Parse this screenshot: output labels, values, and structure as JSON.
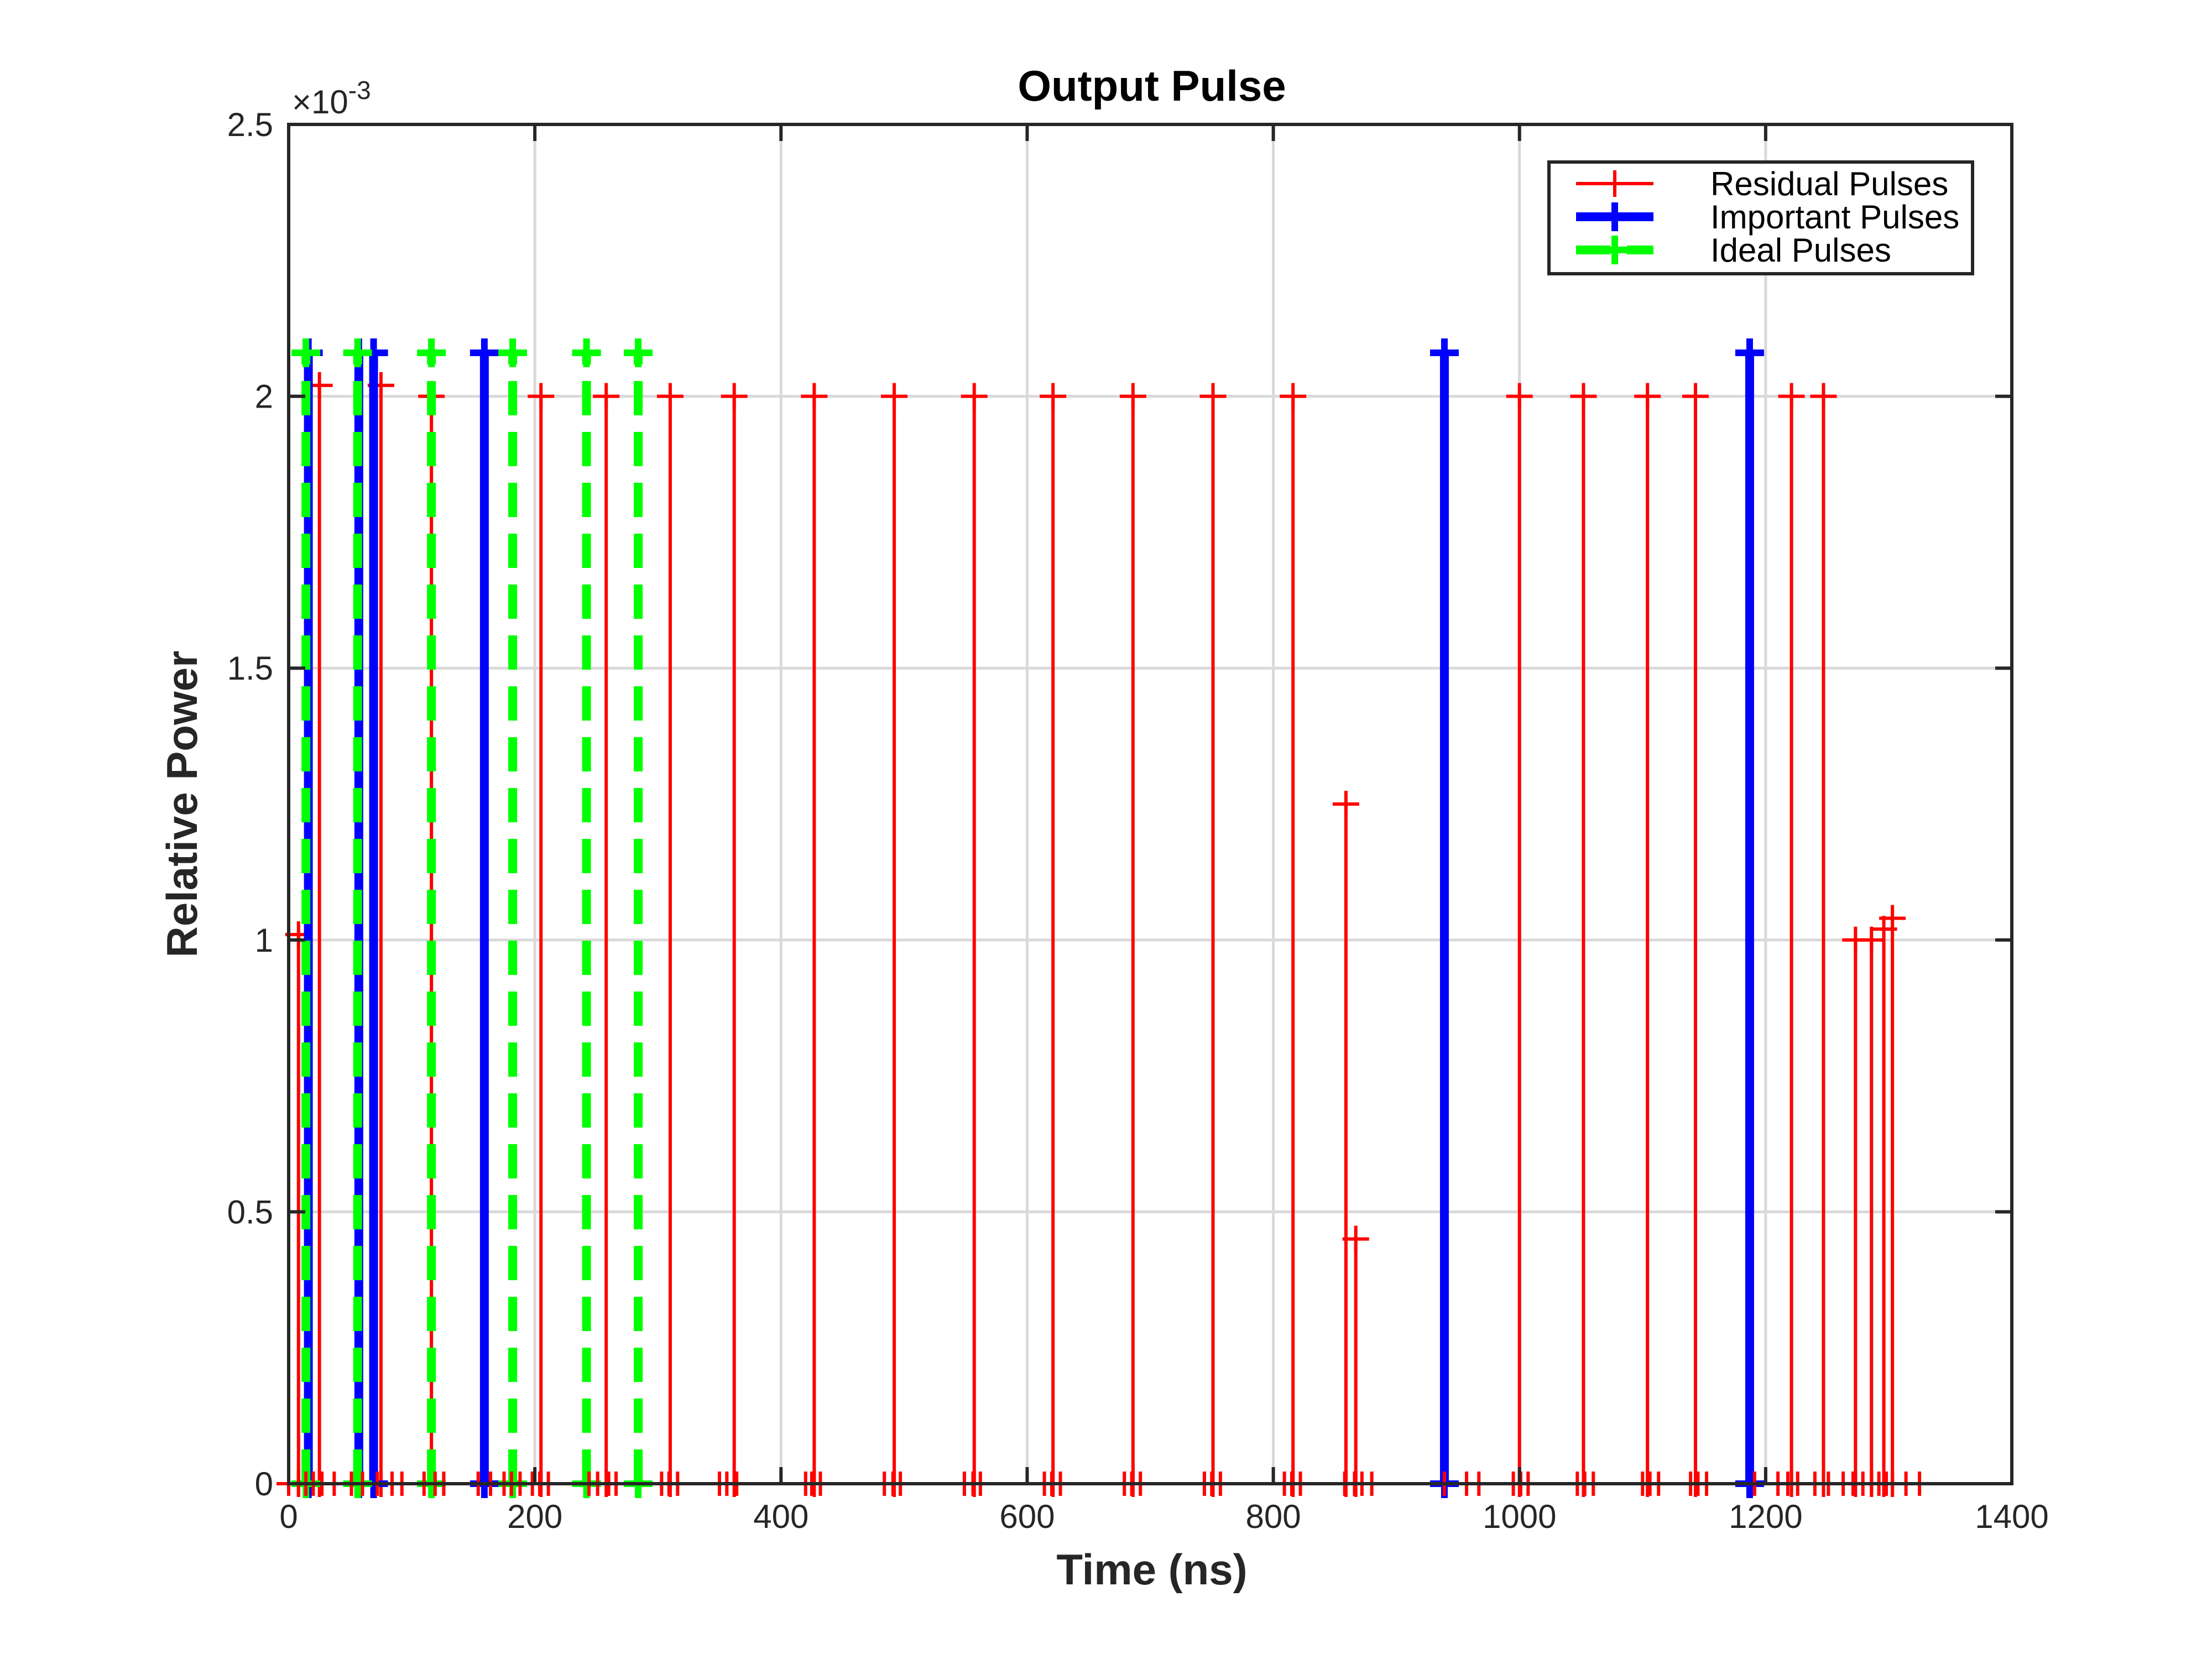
{
  "chart_data": {
    "type": "line",
    "title": "Output Pulse",
    "xlabel": "Time (ns)",
    "ylabel": "Relative Power",
    "xlim": [
      0,
      1400
    ],
    "ylim": [
      0,
      0.0025
    ],
    "y_exponent_label": "×10",
    "y_exponent_power": "-3",
    "xticks": [
      0,
      200,
      400,
      600,
      800,
      1000,
      1200,
      1400
    ],
    "xtick_labels": [
      "0",
      "200",
      "400",
      "600",
      "800",
      "1000",
      "1200",
      "1400"
    ],
    "yticks": [
      0,
      0.0005,
      0.001,
      0.0015,
      0.002,
      0.0025
    ],
    "ytick_labels": [
      "0",
      "0.5",
      "1",
      "1.5",
      "2",
      "2.5"
    ],
    "grid": true,
    "legend_location": "top-right",
    "series": [
      {
        "name": "Residual Pulses",
        "color": "#ff0000",
        "line_style": "solid",
        "line_weight": "thin",
        "marker": "+",
        "pulses": [
          {
            "x": 8,
            "y": 0.00101
          },
          {
            "x": 25,
            "y": 0.00202
          },
          {
            "x": 75,
            "y": 0.00202
          },
          {
            "x": 116,
            "y": 0.002
          },
          {
            "x": 205,
            "y": 0.002
          },
          {
            "x": 258,
            "y": 0.002
          },
          {
            "x": 310,
            "y": 0.002
          },
          {
            "x": 362,
            "y": 0.002
          },
          {
            "x": 427,
            "y": 0.002
          },
          {
            "x": 492,
            "y": 0.002
          },
          {
            "x": 557,
            "y": 0.002
          },
          {
            "x": 621,
            "y": 0.002
          },
          {
            "x": 686,
            "y": 0.002
          },
          {
            "x": 751,
            "y": 0.002
          },
          {
            "x": 816,
            "y": 0.002
          },
          {
            "x": 859,
            "y": 0.00125
          },
          {
            "x": 867,
            "y": 0.00045
          },
          {
            "x": 1000,
            "y": 0.002
          },
          {
            "x": 1052,
            "y": 0.002
          },
          {
            "x": 1104,
            "y": 0.002
          },
          {
            "x": 1143,
            "y": 0.002
          },
          {
            "x": 1221,
            "y": 0.002
          },
          {
            "x": 1247,
            "y": 0.002
          },
          {
            "x": 1273,
            "y": 0.001
          },
          {
            "x": 1286,
            "y": 0.001
          },
          {
            "x": 1296,
            "y": 0.00102
          },
          {
            "x": 1303,
            "y": 0.00104
          }
        ]
      },
      {
        "name": "Important Pulses",
        "color": "#0000ff",
        "line_style": "solid",
        "line_weight": "thick",
        "marker": "+",
        "pulses": [
          {
            "x": 16,
            "y": 0.00208
          },
          {
            "x": 57,
            "y": 0.00208
          },
          {
            "x": 69,
            "y": 0.00208
          },
          {
            "x": 159,
            "y": 0.00208
          },
          {
            "x": 939,
            "y": 0.00208
          },
          {
            "x": 1187,
            "y": 0.00208
          }
        ]
      },
      {
        "name": "Ideal Pulses",
        "color": "#00ff00",
        "line_style": "dashed",
        "line_weight": "thick",
        "marker": "+",
        "pulses": [
          {
            "x": 14,
            "y": 0.00208
          },
          {
            "x": 56,
            "y": 0.00208
          },
          {
            "x": 116,
            "y": 0.00208
          },
          {
            "x": 182,
            "y": 0.00208
          },
          {
            "x": 242,
            "y": 0.00208
          },
          {
            "x": 284,
            "y": 0.00208
          }
        ]
      }
    ],
    "baseline_markers": {
      "color": "#ff0000",
      "y": 0,
      "x": [
        0,
        8,
        14,
        20,
        27,
        37,
        51,
        60,
        72,
        84,
        92,
        110,
        119,
        126,
        154,
        164,
        175,
        181,
        188,
        198,
        204,
        211,
        244,
        251,
        260,
        266,
        303,
        309,
        316,
        350,
        356,
        364,
        420,
        425,
        432,
        484,
        491,
        497,
        549,
        556,
        562,
        614,
        620,
        627,
        679,
        685,
        692,
        744,
        750,
        757,
        809,
        815,
        822,
        858,
        866,
        872,
        880,
        939,
        957,
        967,
        995,
        1001,
        1007,
        1047,
        1053,
        1060,
        1100,
        1106,
        1113,
        1139,
        1145,
        1152,
        1191,
        1210,
        1218,
        1226,
        1240,
        1251,
        1263,
        1271,
        1279,
        1286,
        1292,
        1298,
        1303,
        1314,
        1325
      ]
    }
  }
}
